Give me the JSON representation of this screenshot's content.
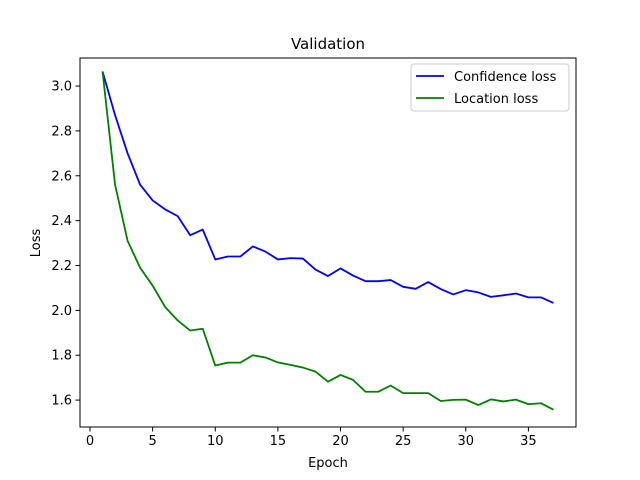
{
  "chart_data": {
    "type": "line",
    "title": "Validation",
    "xlabel": "Epoch",
    "ylabel": "Loss",
    "xlim": [
      -0.8,
      38.8
    ],
    "ylim": [
      1.48,
      3.125
    ],
    "xticks": [
      0,
      5,
      10,
      15,
      20,
      25,
      30,
      35
    ],
    "xtick_labels": [
      "0",
      "5",
      "10",
      "15",
      "20",
      "25",
      "30",
      "35"
    ],
    "yticks": [
      1.6,
      1.8,
      2.0,
      2.2,
      2.4,
      2.6,
      2.8,
      3.0
    ],
    "ytick_labels": [
      "1.6",
      "1.8",
      "2.0",
      "2.2",
      "2.4",
      "2.6",
      "2.8",
      "3.0"
    ],
    "grid": false,
    "legend": "top-right",
    "x": [
      1,
      2,
      3,
      4,
      5,
      6,
      7,
      8,
      9,
      10,
      11,
      12,
      13,
      14,
      15,
      16,
      17,
      18,
      19,
      20,
      21,
      22,
      23,
      24,
      25,
      26,
      27,
      28,
      29,
      30,
      31,
      32,
      33,
      34,
      35,
      36,
      37
    ],
    "series": [
      {
        "name": "Confidence loss",
        "color": "#0000ff",
        "values": [
          3.065,
          2.87,
          2.7,
          2.56,
          2.49,
          2.45,
          2.42,
          2.335,
          2.36,
          2.227,
          2.24,
          2.24,
          2.285,
          2.262,
          2.227,
          2.233,
          2.231,
          2.182,
          2.153,
          2.187,
          2.155,
          2.13,
          2.13,
          2.135,
          2.105,
          2.096,
          2.126,
          2.095,
          2.071,
          2.09,
          2.08,
          2.06,
          2.067,
          2.075,
          2.058,
          2.058,
          2.033
        ]
      },
      {
        "name": "Location loss",
        "color": "#008000",
        "values": [
          3.065,
          2.56,
          2.31,
          2.19,
          2.11,
          2.015,
          1.955,
          1.91,
          1.918,
          1.754,
          1.767,
          1.767,
          1.8,
          1.79,
          1.768,
          1.757,
          1.745,
          1.727,
          1.682,
          1.712,
          1.69,
          1.637,
          1.637,
          1.665,
          1.631,
          1.631,
          1.631,
          1.596,
          1.601,
          1.602,
          1.578,
          1.603,
          1.594,
          1.602,
          1.582,
          1.586,
          1.557
        ]
      }
    ]
  }
}
